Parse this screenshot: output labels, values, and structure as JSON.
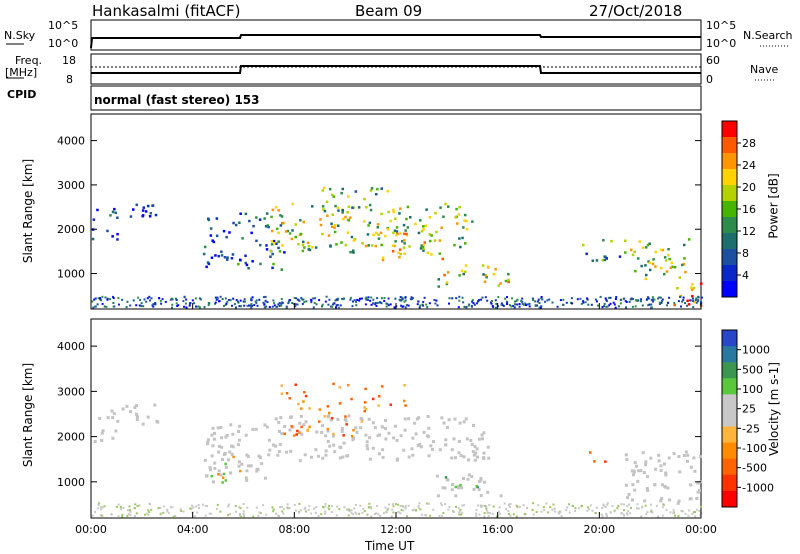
{
  "header": {
    "station": "Hankasalmi (fitACF)",
    "beam": "Beam 09",
    "date": "27/Oct/2018"
  },
  "nsky_panel": {
    "left_label": "N.Sky",
    "left_ticks": [
      "10^5",
      "10^0"
    ],
    "right_label": "N.Search",
    "right_ticks": [
      "10^5",
      "10^0"
    ]
  },
  "freq_panel": {
    "left_label_1": "Freq.",
    "left_label_2": "[MHz]",
    "left_ticks": [
      "18",
      "8"
    ],
    "right_label": "Nave",
    "right_ticks": [
      "60",
      "0"
    ]
  },
  "cpid_panel": {
    "label": "CPID",
    "text": "normal (fast stereo) 153"
  },
  "colors": {
    "velocity_ground": "#c3c3c3",
    "frame": "#000000"
  },
  "chart_data": [
    {
      "type": "heatmap",
      "name_in_image": "Power",
      "ylabel": "Slant Range [km]",
      "yticks": [
        1000,
        2000,
        3000,
        4000
      ],
      "ylim": [
        200,
        4600
      ],
      "xlim": [
        0,
        24
      ],
      "colorbar_label": "Power [dB]",
      "colorbar_ticks": [
        "28",
        "24",
        "20",
        "16",
        "12",
        "8",
        "4"
      ],
      "colorbar_colors": [
        "#ff0000",
        "#ff5a00",
        "#ff9600",
        "#ffd200",
        "#b4d200",
        "#46b400",
        "#2d8c4b",
        "#1e6e6e",
        "#1e50a0",
        "#0a28c8",
        "#0000ff"
      ],
      "regions": [
        {
          "t0": 0.0,
          "t1": 1.0,
          "r0": 1750,
          "r1": 2550,
          "level": 0.15
        },
        {
          "t0": 1.2,
          "t1": 2.6,
          "r0": 2200,
          "r1": 2800,
          "level": 0.12
        },
        {
          "t0": 4.4,
          "t1": 7.6,
          "r0": 1100,
          "r1": 2400,
          "level": 0.18
        },
        {
          "t0": 7.0,
          "t1": 15.0,
          "r0": 1500,
          "r1": 2600,
          "level": 0.55
        },
        {
          "t0": 9.0,
          "t1": 11.8,
          "r0": 2400,
          "r1": 3000,
          "level": 0.45
        },
        {
          "t0": 11.0,
          "t1": 13.8,
          "r0": 1300,
          "r1": 2100,
          "level": 0.65
        },
        {
          "t0": 13.6,
          "t1": 16.4,
          "r0": 700,
          "r1": 1250,
          "level": 0.6
        },
        {
          "t0": 19.3,
          "t1": 21.0,
          "r0": 1300,
          "r1": 1800,
          "level": 0.35
        },
        {
          "t0": 21.2,
          "t1": 24.0,
          "r0": 900,
          "r1": 1800,
          "level": 0.55
        },
        {
          "t0": 22.4,
          "t1": 24.0,
          "r0": 300,
          "r1": 800,
          "level": 0.85
        }
      ]
    },
    {
      "type": "heatmap",
      "name_in_image": "Velocity",
      "ylabel": "Slant Range [km]",
      "xlabel": "Time UT",
      "yticks": [
        1000,
        2000,
        3000,
        4000
      ],
      "ylim": [
        200,
        4600
      ],
      "xlim": [
        0,
        24
      ],
      "xticks": [
        "00:00",
        "04:00",
        "08:00",
        "12:00",
        "16:00",
        "20:00",
        "00:00"
      ],
      "colorbar_label": "Velocity [m s-1]",
      "colorbar_ticks": [
        "1000",
        "500",
        "100",
        "25",
        "-25",
        "-100",
        "-500",
        "-1000"
      ],
      "colorbar_colors": [
        "#2846c8",
        "#2878a0",
        "#3c9650",
        "#5ac83c",
        "#c8c8c8",
        "#c8c8c8",
        "#ffb43c",
        "#ff8c00",
        "#ff6400",
        "#ff3200",
        "#ff0000"
      ],
      "ground_regions": [
        {
          "t0": 0.0,
          "t1": 1.0,
          "r0": 1900,
          "r1": 2600
        },
        {
          "t0": 1.2,
          "t1": 2.6,
          "r0": 2300,
          "r1": 2800
        },
        {
          "t0": 4.4,
          "t1": 7.4,
          "r0": 1000,
          "r1": 2300
        },
        {
          "t0": 7.2,
          "t1": 15.6,
          "r0": 1500,
          "r1": 2500
        },
        {
          "t0": 13.4,
          "t1": 16.2,
          "r0": 700,
          "r1": 1200
        },
        {
          "t0": 21.0,
          "t1": 24.0,
          "r0": 500,
          "r1": 1700
        }
      ],
      "flow_regions": [
        {
          "t0": 7.4,
          "t1": 10.8,
          "r0": 2000,
          "r1": 3200,
          "level": "negative"
        },
        {
          "t0": 4.6,
          "t1": 6.0,
          "r0": 1000,
          "r1": 1600,
          "level": "mixed"
        },
        {
          "t0": 11.0,
          "t1": 12.4,
          "r0": 2700,
          "r1": 3200,
          "level": "negative"
        },
        {
          "t0": 13.8,
          "t1": 15.2,
          "r0": 900,
          "r1": 1200,
          "level": "positive"
        },
        {
          "t0": 19.4,
          "t1": 20.2,
          "r0": 1400,
          "r1": 1700,
          "level": "negative"
        }
      ]
    }
  ]
}
